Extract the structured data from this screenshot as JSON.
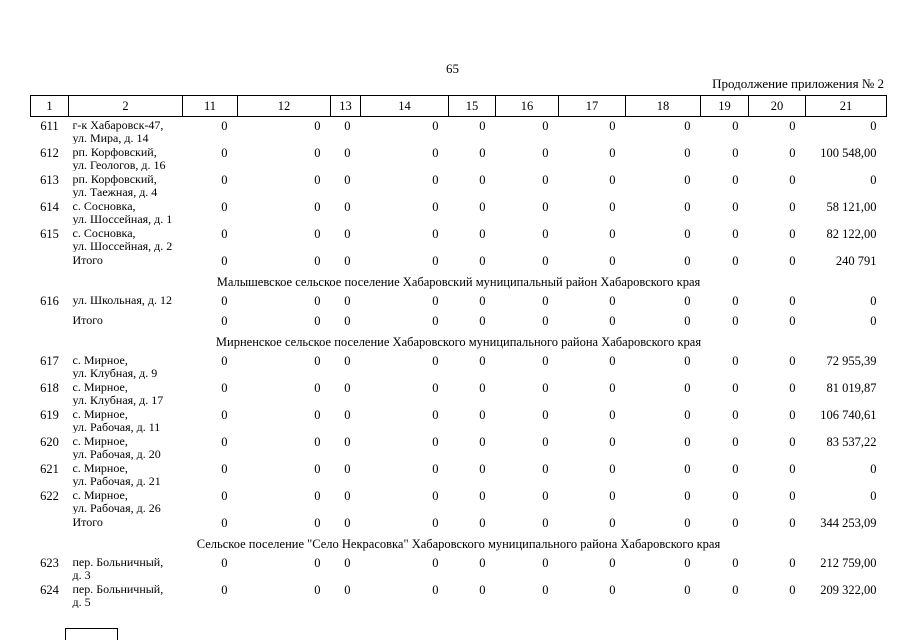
{
  "page": {
    "number": "65",
    "continuation": "Продолжение приложения № 2"
  },
  "table": {
    "columns": [
      "1",
      "2",
      "11",
      "12",
      "13",
      "14",
      "15",
      "16",
      "17",
      "18",
      "19",
      "20",
      "21"
    ],
    "rows": [
      {
        "type": "data",
        "num": "611",
        "address": "г-к Хабаровск-47,\nул. Мира, д. 14",
        "values": [
          "0",
          "0",
          "0",
          "0",
          "0",
          "0",
          "0",
          "0",
          "0",
          "0",
          "0"
        ]
      },
      {
        "type": "data",
        "num": "612",
        "address": "рп. Корфовский,\nул. Геологов, д. 16",
        "values": [
          "0",
          "0",
          "0",
          "0",
          "0",
          "0",
          "0",
          "0",
          "0",
          "0",
          "100 548,00"
        ]
      },
      {
        "type": "data",
        "num": "613",
        "address": "рп. Корфовский,\nул. Таежная, д. 4",
        "values": [
          "0",
          "0",
          "0",
          "0",
          "0",
          "0",
          "0",
          "0",
          "0",
          "0",
          "0"
        ]
      },
      {
        "type": "data",
        "num": "614",
        "address": "с. Сосновка,\nул. Шоссейная, д. 1",
        "values": [
          "0",
          "0",
          "0",
          "0",
          "0",
          "0",
          "0",
          "0",
          "0",
          "0",
          "58 121,00"
        ]
      },
      {
        "type": "data",
        "num": "615",
        "address": "с. Сосновка,\nул. Шоссейная, д. 2",
        "values": [
          "0",
          "0",
          "0",
          "0",
          "0",
          "0",
          "0",
          "0",
          "0",
          "0",
          "82 122,00"
        ]
      },
      {
        "type": "total",
        "label": "Итого",
        "values": [
          "0",
          "0",
          "0",
          "0",
          "0",
          "0",
          "0",
          "0",
          "0",
          "0",
          "240 791"
        ]
      },
      {
        "type": "section",
        "title": "Малышевское сельское поселение Хабаровский муниципальный район Хабаровского края"
      },
      {
        "type": "data",
        "num": "616",
        "address": "ул. Школьная, д. 12",
        "values": [
          "0",
          "0",
          "0",
          "0",
          "0",
          "0",
          "0",
          "0",
          "0",
          "0",
          "0"
        ]
      },
      {
        "type": "total",
        "label": "Итого",
        "values": [
          "0",
          "0",
          "0",
          "0",
          "0",
          "0",
          "0",
          "0",
          "0",
          "0",
          "0"
        ]
      },
      {
        "type": "section",
        "title": "Мирненское сельское поселение Хабаровского муниципального района Хабаровского края"
      },
      {
        "type": "data",
        "num": "617",
        "address": "с. Мирное,\nул. Клубная, д. 9",
        "values": [
          "0",
          "0",
          "0",
          "0",
          "0",
          "0",
          "0",
          "0",
          "0",
          "0",
          "72 955,39"
        ]
      },
      {
        "type": "data",
        "num": "618",
        "address": "с. Мирное,\nул. Клубная, д. 17",
        "values": [
          "0",
          "0",
          "0",
          "0",
          "0",
          "0",
          "0",
          "0",
          "0",
          "0",
          "81 019,87"
        ]
      },
      {
        "type": "data",
        "num": "619",
        "address": "с. Мирное,\nул. Рабочая, д. 11",
        "values": [
          "0",
          "0",
          "0",
          "0",
          "0",
          "0",
          "0",
          "0",
          "0",
          "0",
          "106 740,61"
        ]
      },
      {
        "type": "data",
        "num": "620",
        "address": "с. Мирное,\nул. Рабочая, д. 20",
        "values": [
          "0",
          "0",
          "0",
          "0",
          "0",
          "0",
          "0",
          "0",
          "0",
          "0",
          "83 537,22"
        ]
      },
      {
        "type": "data",
        "num": "621",
        "address": "с. Мирное,\nул. Рабочая, д. 21",
        "values": [
          "0",
          "0",
          "0",
          "0",
          "0",
          "0",
          "0",
          "0",
          "0",
          "0",
          "0"
        ]
      },
      {
        "type": "data",
        "num": "622",
        "address": "с. Мирное,\nул. Рабочая, д. 26",
        "values": [
          "0",
          "0",
          "0",
          "0",
          "0",
          "0",
          "0",
          "0",
          "0",
          "0",
          "0"
        ]
      },
      {
        "type": "total",
        "label": "Итого",
        "values": [
          "0",
          "0",
          "0",
          "0",
          "0",
          "0",
          "0",
          "0",
          "0",
          "0",
          "344 253,09"
        ]
      },
      {
        "type": "section",
        "title": "Сельское поселение \"Село Некрасовка\" Хабаровского муниципального района Хабаровского края"
      },
      {
        "type": "data",
        "num": "623",
        "address": "пер. Больничный,\nд. 3",
        "values": [
          "0",
          "0",
          "0",
          "0",
          "0",
          "0",
          "0",
          "0",
          "0",
          "0",
          "212 759,00"
        ]
      },
      {
        "type": "data",
        "num": "624",
        "address": "пер. Больничный,\nд. 5",
        "values": [
          "0",
          "0",
          "0",
          "0",
          "0",
          "0",
          "0",
          "0",
          "0",
          "0",
          "209 322,00"
        ]
      }
    ]
  }
}
